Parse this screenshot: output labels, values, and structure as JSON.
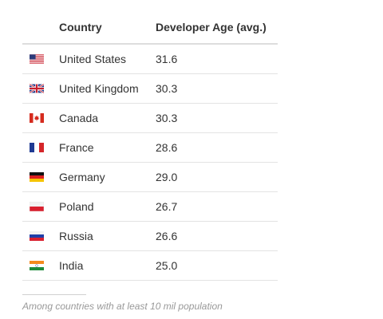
{
  "chart_data": {
    "type": "table",
    "columns": [
      "",
      "Country",
      "Developer Age (avg.)"
    ],
    "rows": [
      {
        "flag": "us-flag-icon",
        "country": "United States",
        "age": "31.6"
      },
      {
        "flag": "uk-flag-icon",
        "country": "United Kingdom",
        "age": "30.3"
      },
      {
        "flag": "canada-flag-icon",
        "country": "Canada",
        "age": "30.3"
      },
      {
        "flag": "france-flag-icon",
        "country": "France",
        "age": "28.6"
      },
      {
        "flag": "germany-flag-icon",
        "country": "Germany",
        "age": "29.0"
      },
      {
        "flag": "poland-flag-icon",
        "country": "Poland",
        "age": "26.7"
      },
      {
        "flag": "russia-flag-icon",
        "country": "Russia",
        "age": "26.6"
      },
      {
        "flag": "india-flag-icon",
        "country": "India",
        "age": "25.0"
      }
    ],
    "footnote": "Among countries with at least 10 mil population"
  }
}
